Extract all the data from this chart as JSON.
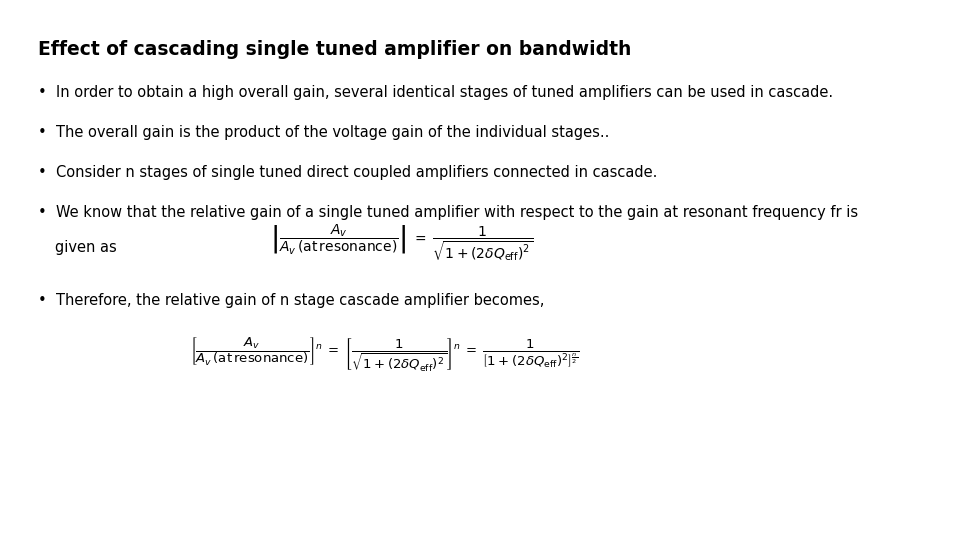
{
  "title": "Effect of cascading single tuned amplifier on bandwidth",
  "bullet1": "In order to obtain a high overall gain, several identical stages of tuned amplifiers can be used in cascade.",
  "bullet2": "The overall gain is the product of the voltage gain of the individual stages..",
  "bullet3": "Consider n stages of single tuned direct coupled amplifiers connected in cascade.",
  "bullet4": "We know that the relative gain of a single tuned amplifier with respect to the gain at resonant frequency fr is",
  "bullet4b": "given as",
  "bullet5": "Therefore, the relative gain of n stage cascade amplifier becomes,",
  "bg_color": "#ffffff",
  "text_color": "#000000",
  "title_fontsize": 13.5,
  "body_fontsize": 10.5,
  "formula1_fontsize": 10.0,
  "formula2_fontsize": 9.5
}
